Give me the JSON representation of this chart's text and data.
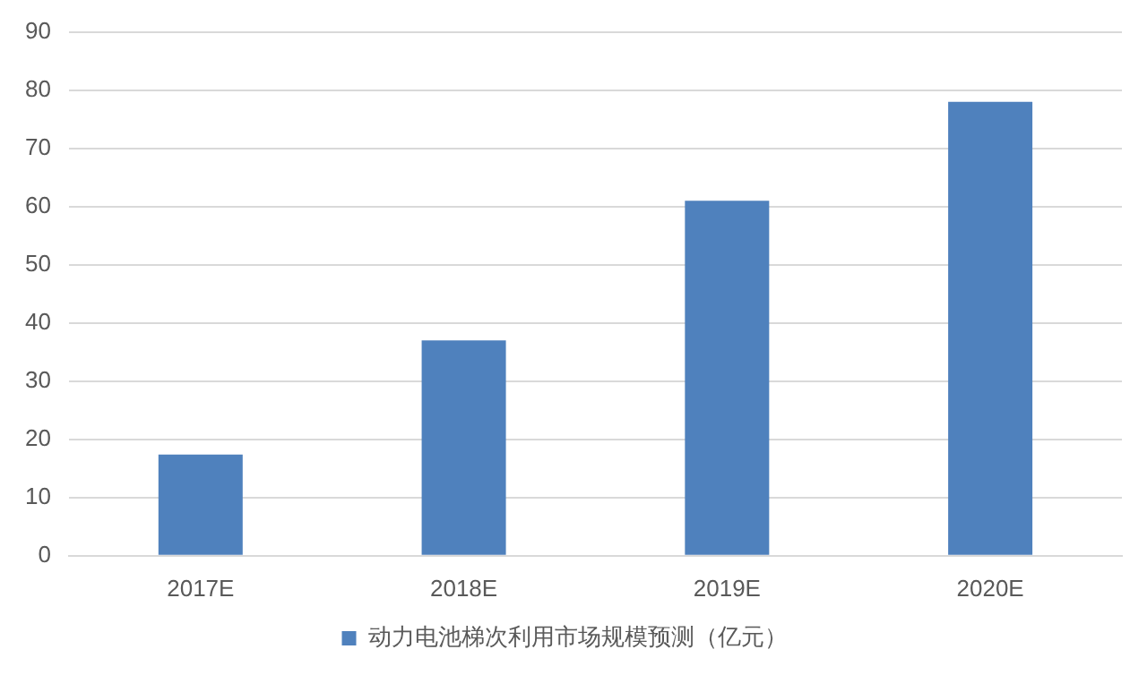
{
  "chart_data": {
    "type": "bar",
    "categories": [
      "2017E",
      "2018E",
      "2019E",
      "2020E"
    ],
    "series": [
      {
        "name": "动力电池梯次利用市场规模预测（亿元）",
        "color": "#4f81bd",
        "values": [
          17.4,
          37,
          61,
          78
        ]
      }
    ],
    "ylim": [
      0,
      90
    ],
    "yticks": [
      0,
      10,
      20,
      30,
      40,
      50,
      60,
      70,
      80,
      90
    ],
    "grid": "y",
    "legend": "bottom"
  }
}
